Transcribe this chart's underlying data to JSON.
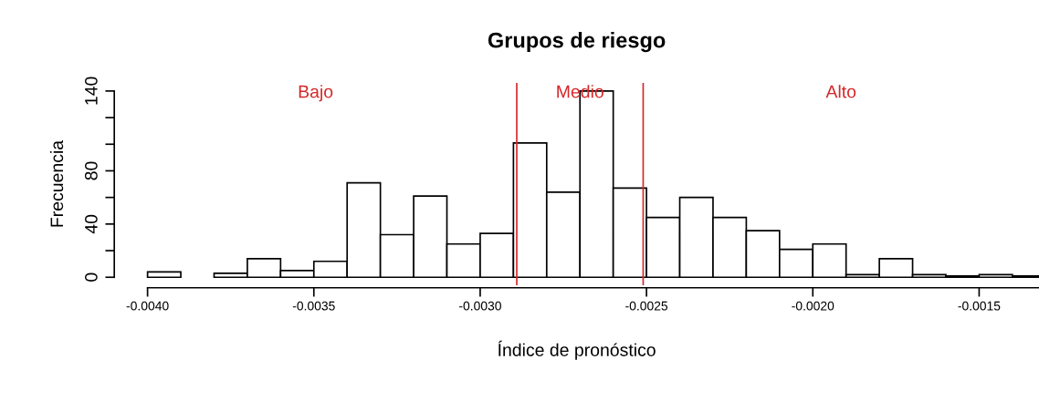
{
  "chart_data": {
    "type": "histogram",
    "title": "Grupos de riesgo",
    "xlabel": "Índice de pronóstico",
    "ylabel": "Frecuencia",
    "bins": [
      -0.004,
      -0.0039,
      -0.0038,
      -0.0037,
      -0.0036,
      -0.0035,
      -0.0034,
      -0.0033,
      -0.0032,
      -0.0031,
      -0.003,
      -0.0029,
      -0.0028,
      -0.0027,
      -0.0026,
      -0.0025,
      -0.0024,
      -0.0023,
      -0.0022,
      -0.0021,
      -0.002,
      -0.0019,
      -0.0018,
      -0.0017,
      -0.0016,
      -0.0015,
      -0.0014,
      -0.0013
    ],
    "values": [
      4,
      0,
      3,
      14,
      5,
      12,
      71,
      32,
      61,
      25,
      33,
      101,
      64,
      140,
      67,
      45,
      60,
      45,
      35,
      21,
      25,
      2,
      14,
      2,
      1,
      2,
      1
    ],
    "color": "#ffffff",
    "xlim": [
      -0.0041,
      -0.00132
    ],
    "ylim": [
      -6,
      146
    ],
    "xticks": [
      {
        "value": -0.004,
        "label": "-0.0040"
      },
      {
        "value": -0.0035,
        "label": "-0.0035"
      },
      {
        "value": -0.003,
        "label": "-0.0030"
      },
      {
        "value": -0.0025,
        "label": "-0.0025"
      },
      {
        "value": -0.002,
        "label": "-0.0020"
      },
      {
        "value": -0.0015,
        "label": "-0.0015"
      }
    ],
    "yticks": [
      0,
      {
        "value": 20,
        "label": null
      },
      40,
      {
        "value": 60,
        "label": null
      },
      80,
      {
        "value": 100,
        "label": null
      },
      {
        "value": 120,
        "label": null
      },
      140
    ],
    "ref_lines": [
      {
        "axis": "x",
        "value": -0.00289,
        "color": "#d62728"
      },
      {
        "axis": "x",
        "value": -0.00251,
        "color": "#d62728"
      }
    ],
    "annotations": [
      "Bajo",
      "Medio",
      "Alto"
    ],
    "grid": false
  }
}
